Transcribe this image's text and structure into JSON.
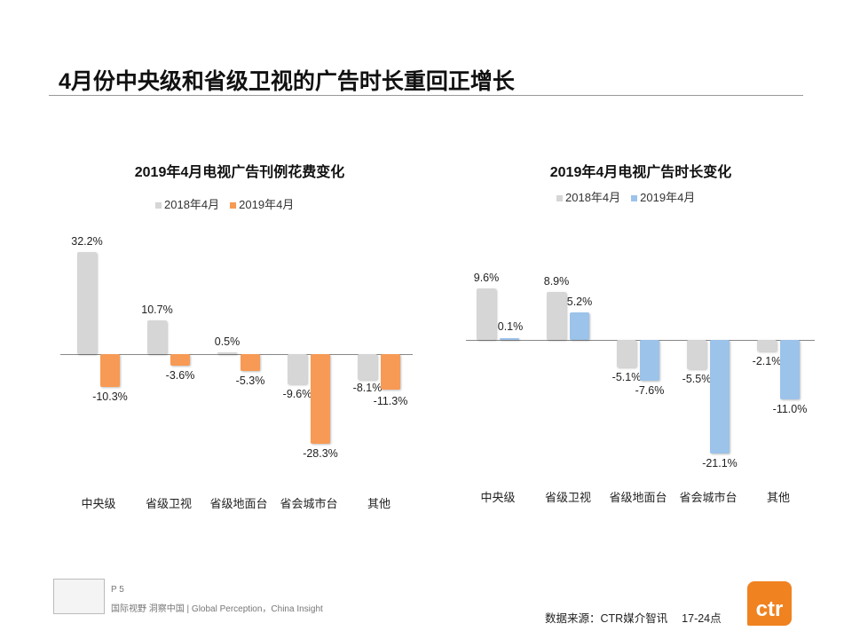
{
  "title": "4月份中央级和省级卫视的广告时长重回正增长",
  "colors": {
    "gray": "#d6d6d6",
    "orange": "#f79a55",
    "blue": "#9cc3ea"
  },
  "chart_data": [
    {
      "type": "bar",
      "title": "2019年4月电视广告刊例花费变化",
      "categories": [
        "中央级",
        "省级卫视",
        "省级地面台",
        "省会城市台",
        "其他"
      ],
      "series": [
        {
          "name": "2018年4月",
          "values": [
            32.2,
            10.7,
            0.5,
            -9.6,
            -8.1
          ]
        },
        {
          "name": "2019年4月",
          "values": [
            -10.3,
            -3.6,
            -5.3,
            -28.3,
            -11.3
          ]
        }
      ],
      "labels": [
        [
          "32.2%",
          "10.7%",
          "0.5%",
          "-9.6%",
          "-8.1%"
        ],
        [
          "-10.3%",
          "-3.6%",
          "-5.3%",
          "-28.3%",
          "-11.3%"
        ]
      ],
      "legend": "top",
      "grid": false
    },
    {
      "type": "bar",
      "title": "2019年4月电视广告时长变化",
      "categories": [
        "中央级",
        "省级卫视",
        "省级地面台",
        "省会城市台",
        "其他"
      ],
      "series": [
        {
          "name": "2018年4月",
          "values": [
            9.6,
            8.9,
            -5.1,
            -5.5,
            -2.1
          ]
        },
        {
          "name": "2019年4月",
          "values": [
            0.1,
            5.2,
            -7.6,
            -21.1,
            -11.0
          ]
        }
      ],
      "labels": [
        [
          "9.6%",
          "8.9%",
          "-5.1%",
          "-5.5%",
          "-2.1%"
        ],
        [
          "0.1%",
          "5.2%",
          "-7.6%",
          "-21.1%",
          "-11.0%"
        ]
      ],
      "legend": "top",
      "grid": false
    }
  ],
  "footer": {
    "page": "P 5",
    "slogan": "国际视野 洞察中国 | Global Perception，China Insight",
    "source": "数据来源：CTR媒介智讯　 17-24点",
    "logo": "ctr"
  }
}
